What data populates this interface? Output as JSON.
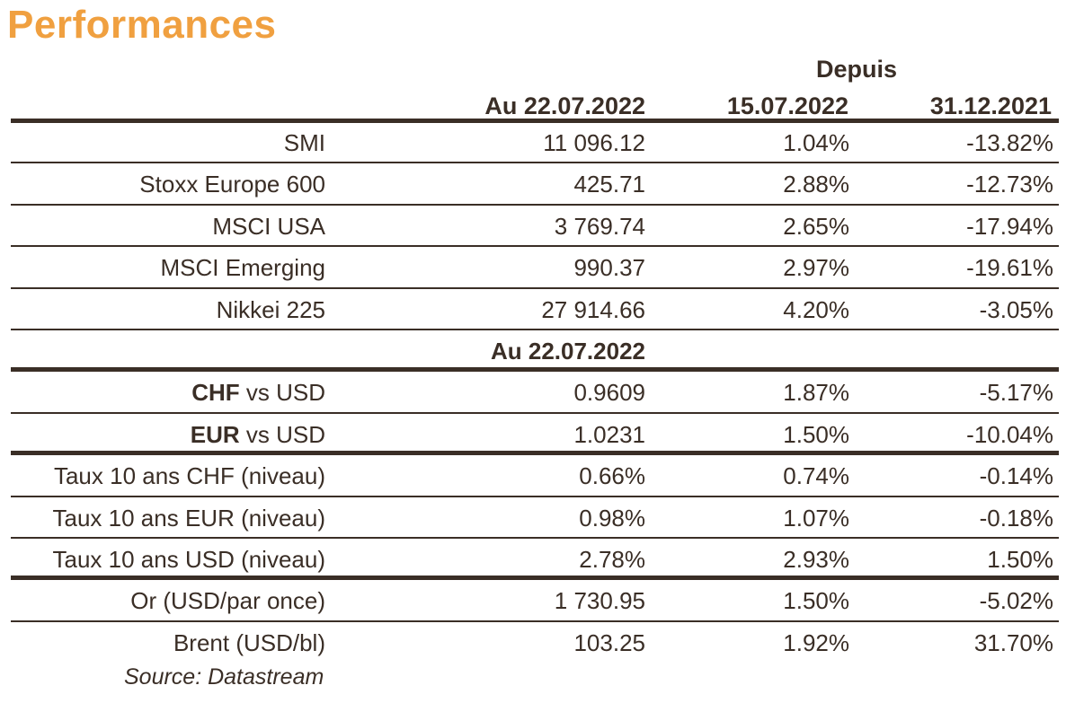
{
  "title": "Performances",
  "header": {
    "since_label": "Depuis",
    "col_date": "Au 22.07.2022",
    "col_week": "15.07.2022",
    "col_ytd": "31.12.2021"
  },
  "equities": [
    {
      "label": "SMI",
      "value": "11 096.12",
      "week": "1.04%",
      "ytd": "-13.82%"
    },
    {
      "label": "Stoxx Europe 600",
      "value": "425.71",
      "week": "2.88%",
      "ytd": "-12.73%"
    },
    {
      "label": "MSCI USA",
      "value": "3 769.74",
      "week": "2.65%",
      "ytd": "-17.94%"
    },
    {
      "label": "MSCI Emerging",
      "value": "990.37",
      "week": "2.97%",
      "ytd": "-19.61%"
    },
    {
      "label": "Nikkei 225",
      "value": "27 914.66",
      "week": "4.20%",
      "ytd": "-3.05%"
    }
  ],
  "subheader": "Au 22.07.2022",
  "fx": [
    {
      "code": "CHF",
      "label": " vs USD",
      "value": "0.9609",
      "week": "1.87%",
      "ytd": "-5.17%"
    },
    {
      "code": "EUR",
      "label": " vs USD",
      "value": "1.0231",
      "week": "1.50%",
      "ytd": "-10.04%"
    }
  ],
  "rates": [
    {
      "label": "Taux 10 ans CHF (niveau)",
      "value": "0.66%",
      "week": "0.74%",
      "ytd": "-0.14%"
    },
    {
      "label": "Taux 10 ans EUR (niveau)",
      "value": "0.98%",
      "week": "1.07%",
      "ytd": "-0.18%"
    },
    {
      "label": "Taux 10 ans USD (niveau)",
      "value": "2.78%",
      "week": "2.93%",
      "ytd": "1.50%"
    }
  ],
  "commodities": [
    {
      "label": "Or (USD/par once)",
      "value": "1 730.95",
      "week": "1.50%",
      "ytd": "-5.02%"
    },
    {
      "label": "Brent (USD/bl)",
      "value": "103.25",
      "week": "1.92%",
      "ytd": "31.70%"
    }
  ],
  "source": "Source: Datastream",
  "colors": {
    "title": "#f0a040",
    "text": "#3a2e26",
    "rule": "#3a2e26"
  }
}
